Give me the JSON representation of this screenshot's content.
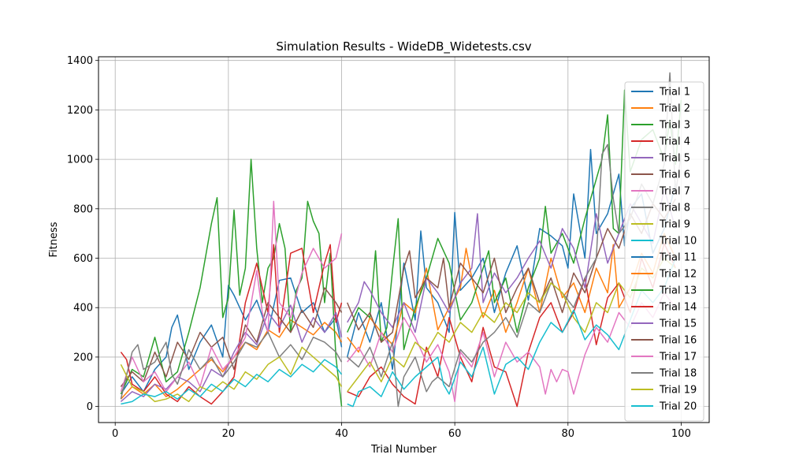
{
  "chart_data": {
    "type": "line",
    "title": "Simulation Results - WideDB_Widetests.csv",
    "xlabel": "Trial Number",
    "ylabel": "Fitness",
    "xlim": [
      -2.95,
      104.95
    ],
    "ylim": [
      -65,
      1415
    ],
    "xticks": [
      0,
      20,
      40,
      60,
      80,
      100
    ],
    "yticks": [
      0,
      200,
      400,
      600,
      800,
      1000,
      1200,
      1400
    ],
    "grid": true,
    "legend_position": "upper-right",
    "colors": [
      "#1f77b4",
      "#ff7f0e",
      "#2ca02c",
      "#d62728",
      "#9467bd",
      "#8c564b",
      "#e377c2",
      "#7f7f7f",
      "#bcbd22",
      "#17becf"
    ],
    "series": [
      {
        "name": "Trial 1",
        "x": [
          1,
          3,
          5,
          7,
          9,
          10,
          11,
          13,
          15,
          17,
          19,
          20,
          21,
          23,
          25,
          27,
          29,
          31,
          33,
          35,
          37,
          39,
          40
        ],
        "y": [
          50,
          120,
          60,
          150,
          200,
          320,
          370,
          150,
          260,
          330,
          200,
          490,
          450,
          350,
          430,
          300,
          510,
          520,
          380,
          420,
          300,
          360,
          240
        ]
      },
      {
        "name": "Trial 2",
        "x": [
          1,
          3,
          5,
          7,
          9,
          11,
          13,
          15,
          17,
          19,
          21,
          23,
          25,
          27,
          29,
          31,
          33,
          35,
          37,
          39,
          40
        ],
        "y": [
          30,
          80,
          50,
          90,
          40,
          70,
          110,
          150,
          190,
          140,
          200,
          260,
          230,
          310,
          280,
          350,
          320,
          290,
          340,
          300,
          260
        ]
      },
      {
        "name": "Trial 3",
        "x": [
          1,
          3,
          5,
          7,
          9,
          11,
          13,
          15,
          17,
          18,
          19,
          20,
          21,
          22,
          23,
          24,
          25,
          26,
          27,
          28,
          29,
          30,
          31,
          32,
          33,
          34,
          35,
          36,
          37,
          38,
          39,
          40
        ],
        "y": [
          50,
          150,
          120,
          280,
          100,
          140,
          300,
          480,
          740,
          845,
          360,
          440,
          795,
          450,
          560,
          1000,
          640,
          420,
          560,
          600,
          740,
          640,
          300,
          470,
          520,
          830,
          750,
          700,
          420,
          620,
          200,
          0
        ]
      },
      {
        "name": "Trial 4",
        "x": [
          1,
          2,
          3,
          5,
          7,
          9,
          11,
          13,
          15,
          17,
          19,
          21,
          23,
          25,
          27,
          28,
          29,
          31,
          33,
          35,
          37,
          38,
          39,
          40
        ],
        "y": [
          220,
          190,
          90,
          60,
          120,
          50,
          20,
          80,
          40,
          10,
          60,
          120,
          420,
          580,
          380,
          655,
          300,
          620,
          640,
          380,
          580,
          655,
          340,
          420
        ]
      },
      {
        "name": "Trial 5",
        "x": [
          1,
          3,
          5,
          7,
          9,
          11,
          13,
          15,
          17,
          19,
          21,
          23,
          25,
          27,
          29,
          31,
          33,
          35,
          37,
          39,
          40
        ],
        "y": [
          20,
          60,
          40,
          90,
          70,
          120,
          100,
          60,
          150,
          120,
          220,
          300,
          250,
          380,
          320,
          410,
          260,
          360,
          300,
          380,
          280
        ]
      },
      {
        "name": "Trial 6",
        "x": [
          1,
          3,
          5,
          7,
          9,
          11,
          13,
          15,
          17,
          19,
          21,
          23,
          25,
          27,
          29,
          31,
          33,
          35,
          37,
          39,
          40
        ],
        "y": [
          80,
          140,
          100,
          220,
          120,
          260,
          190,
          300,
          240,
          280,
          150,
          330,
          260,
          420,
          360,
          300,
          390,
          320,
          480,
          420,
          380
        ]
      },
      {
        "name": "Trial 7",
        "x": [
          1,
          3,
          5,
          7,
          9,
          11,
          13,
          15,
          17,
          19,
          21,
          23,
          25,
          26,
          27,
          28,
          29,
          31,
          33,
          35,
          37,
          39,
          40
        ],
        "y": [
          60,
          200,
          100,
          140,
          60,
          120,
          180,
          80,
          240,
          150,
          200,
          280,
          550,
          380,
          300,
          830,
          420,
          360,
          540,
          640,
          560,
          600,
          700
        ]
      },
      {
        "name": "Trial 8",
        "x": [
          1,
          3,
          4,
          5,
          7,
          9,
          10,
          11,
          13,
          15,
          17,
          19,
          21,
          23,
          25,
          27,
          29,
          31,
          33,
          35,
          37,
          39,
          40
        ],
        "y": [
          30,
          220,
          250,
          150,
          180,
          260,
          130,
          90,
          230,
          150,
          200,
          120,
          180,
          260,
          240,
          300,
          200,
          250,
          190,
          280,
          260,
          220,
          180
        ]
      },
      {
        "name": "Trial 9",
        "x": [
          1,
          3,
          5,
          7,
          9,
          11,
          13,
          15,
          17,
          19,
          21,
          23,
          25,
          27,
          29,
          31,
          33,
          35,
          37,
          39,
          40
        ],
        "y": [
          170,
          80,
          60,
          20,
          30,
          50,
          20,
          80,
          60,
          100,
          70,
          140,
          110,
          170,
          200,
          130,
          240,
          200,
          160,
          120,
          80
        ]
      },
      {
        "name": "Trial 10",
        "x": [
          1,
          3,
          5,
          7,
          9,
          11,
          13,
          15,
          17,
          19,
          21,
          23,
          25,
          27,
          29,
          31,
          33,
          35,
          37,
          39,
          40
        ],
        "y": [
          10,
          20,
          50,
          40,
          60,
          30,
          70,
          40,
          90,
          60,
          110,
          80,
          130,
          100,
          150,
          120,
          170,
          140,
          190,
          160,
          130
        ]
      },
      {
        "name": "Trial 11",
        "x": [
          41,
          43,
          45,
          47,
          49,
          51,
          53,
          54,
          55,
          57,
          59,
          60,
          61,
          63,
          65,
          67,
          69,
          71,
          73,
          75,
          77,
          79,
          80,
          81,
          83,
          84,
          85,
          87,
          89,
          90,
          91,
          93,
          95,
          97,
          99
        ],
        "y": [
          200,
          380,
          260,
          420,
          150,
          580,
          350,
          710,
          480,
          420,
          300,
          785,
          470,
          520,
          600,
          380,
          540,
          650,
          430,
          720,
          690,
          650,
          560,
          860,
          600,
          1040,
          700,
          780,
          940,
          650,
          800,
          860,
          620,
          720,
          900
        ]
      },
      {
        "name": "Trial 12",
        "x": [
          41,
          43,
          45,
          47,
          49,
          51,
          53,
          55,
          57,
          59,
          61,
          62,
          63,
          65,
          67,
          69,
          71,
          73,
          75,
          77,
          79,
          81,
          83,
          85,
          87,
          88,
          89,
          91,
          93,
          95,
          97,
          99
        ],
        "y": [
          280,
          220,
          360,
          300,
          250,
          420,
          380,
          560,
          310,
          400,
          480,
          640,
          520,
          360,
          470,
          300,
          420,
          560,
          380,
          600,
          440,
          500,
          380,
          560,
          460,
          655,
          400,
          480,
          620,
          540,
          700,
          600
        ]
      },
      {
        "name": "Trial 13",
        "x": [
          41,
          43,
          45,
          46,
          47,
          48,
          49,
          50,
          51,
          53,
          55,
          57,
          59,
          61,
          63,
          65,
          66,
          67,
          69,
          71,
          73,
          75,
          76,
          77,
          79,
          81,
          83,
          85,
          86,
          87,
          88,
          89,
          90,
          91,
          93,
          95,
          97,
          98,
          99,
          100
        ],
        "y": [
          300,
          400,
          360,
          630,
          260,
          320,
          550,
          760,
          230,
          400,
          520,
          680,
          580,
          350,
          420,
          560,
          630,
          420,
          520,
          300,
          480,
          600,
          810,
          620,
          700,
          580,
          760,
          920,
          1000,
          1180,
          720,
          700,
          1280,
          950,
          1080,
          1120,
          1000,
          1160,
          980,
          1240
        ]
      },
      {
        "name": "Trial 14",
        "x": [
          41,
          43,
          45,
          47,
          49,
          51,
          53,
          55,
          57,
          59,
          61,
          63,
          65,
          67,
          69,
          71,
          73,
          75,
          77,
          79,
          81,
          83,
          85,
          87,
          89,
          91,
          93,
          95,
          97,
          99
        ],
        "y": [
          60,
          40,
          120,
          160,
          90,
          40,
          10,
          240,
          120,
          360,
          200,
          100,
          320,
          160,
          140,
          0,
          220,
          360,
          420,
          300,
          380,
          520,
          250,
          440,
          500,
          380,
          600,
          480,
          660,
          560
        ]
      },
      {
        "name": "Trial 15",
        "x": [
          41,
          43,
          44,
          45,
          47,
          49,
          51,
          53,
          55,
          57,
          59,
          61,
          63,
          64,
          65,
          67,
          69,
          71,
          73,
          75,
          77,
          79,
          81,
          83,
          85,
          87,
          89,
          91,
          93,
          95,
          97,
          99
        ],
        "y": [
          340,
          420,
          505,
          470,
          380,
          320,
          420,
          300,
          520,
          460,
          380,
          500,
          560,
          780,
          420,
          540,
          460,
          520,
          600,
          670,
          560,
          720,
          640,
          480,
          780,
          580,
          700,
          820,
          740,
          660,
          880,
          720
        ]
      },
      {
        "name": "Trial 16",
        "x": [
          41,
          43,
          45,
          47,
          49,
          51,
          52,
          53,
          55,
          57,
          58,
          59,
          61,
          63,
          65,
          67,
          69,
          71,
          73,
          75,
          77,
          79,
          81,
          83,
          85,
          87,
          89,
          91,
          93,
          95,
          97,
          99
        ],
        "y": [
          420,
          310,
          380,
          260,
          300,
          560,
          630,
          440,
          520,
          480,
          600,
          400,
          580,
          520,
          460,
          600,
          380,
          480,
          560,
          420,
          520,
          380,
          540,
          460,
          600,
          720,
          640,
          780,
          700,
          820,
          760,
          840
        ]
      },
      {
        "name": "Trial 17",
        "x": [
          41,
          43,
          45,
          47,
          49,
          51,
          53,
          55,
          57,
          59,
          60,
          61,
          63,
          65,
          67,
          69,
          71,
          73,
          75,
          76,
          77,
          78,
          79,
          80,
          81,
          83,
          85,
          87,
          89,
          91,
          93,
          95,
          97,
          99
        ],
        "y": [
          180,
          240,
          160,
          300,
          220,
          360,
          280,
          180,
          250,
          140,
          20,
          220,
          160,
          300,
          120,
          260,
          180,
          220,
          160,
          50,
          150,
          100,
          150,
          140,
          50,
          210,
          320,
          260,
          380,
          320,
          420,
          360,
          460,
          400
        ]
      },
      {
        "name": "Trial 18",
        "x": [
          41,
          43,
          45,
          47,
          49,
          50,
          51,
          53,
          55,
          56,
          57,
          59,
          61,
          63,
          65,
          67,
          69,
          71,
          73,
          75,
          77,
          79,
          81,
          83,
          85,
          86,
          87,
          88,
          89,
          91,
          93,
          95,
          97,
          98,
          99,
          100
        ],
        "y": [
          200,
          160,
          240,
          120,
          260,
          0,
          120,
          200,
          60,
          100,
          120,
          80,
          230,
          180,
          260,
          300,
          360,
          280,
          420,
          380,
          500,
          460,
          400,
          520,
          600,
          1020,
          1060,
          840,
          700,
          760,
          900,
          820,
          980,
          1350,
          860,
          1020
        ]
      },
      {
        "name": "Trial 19",
        "x": [
          41,
          43,
          45,
          47,
          49,
          51,
          53,
          55,
          57,
          59,
          61,
          63,
          65,
          67,
          69,
          71,
          73,
          75,
          77,
          79,
          81,
          83,
          85,
          87,
          89,
          91,
          93,
          95,
          97,
          99
        ],
        "y": [
          60,
          120,
          180,
          100,
          200,
          160,
          260,
          220,
          300,
          260,
          340,
          300,
          380,
          340,
          420,
          380,
          460,
          420,
          500,
          460,
          360,
          300,
          420,
          380,
          500,
          440,
          560,
          520,
          600,
          560
        ]
      },
      {
        "name": "Trial 20",
        "x": [
          41,
          42,
          43,
          45,
          47,
          49,
          51,
          53,
          55,
          57,
          58,
          59,
          61,
          63,
          65,
          67,
          69,
          71,
          73,
          75,
          77,
          79,
          81,
          83,
          85,
          87,
          89,
          91,
          93,
          95,
          97,
          99
        ],
        "y": [
          10,
          0,
          60,
          80,
          40,
          140,
          70,
          120,
          160,
          200,
          90,
          50,
          180,
          120,
          240,
          50,
          170,
          200,
          150,
          260,
          340,
          300,
          390,
          270,
          330,
          290,
          230,
          350,
          470,
          420,
          480,
          600
        ]
      }
    ]
  }
}
